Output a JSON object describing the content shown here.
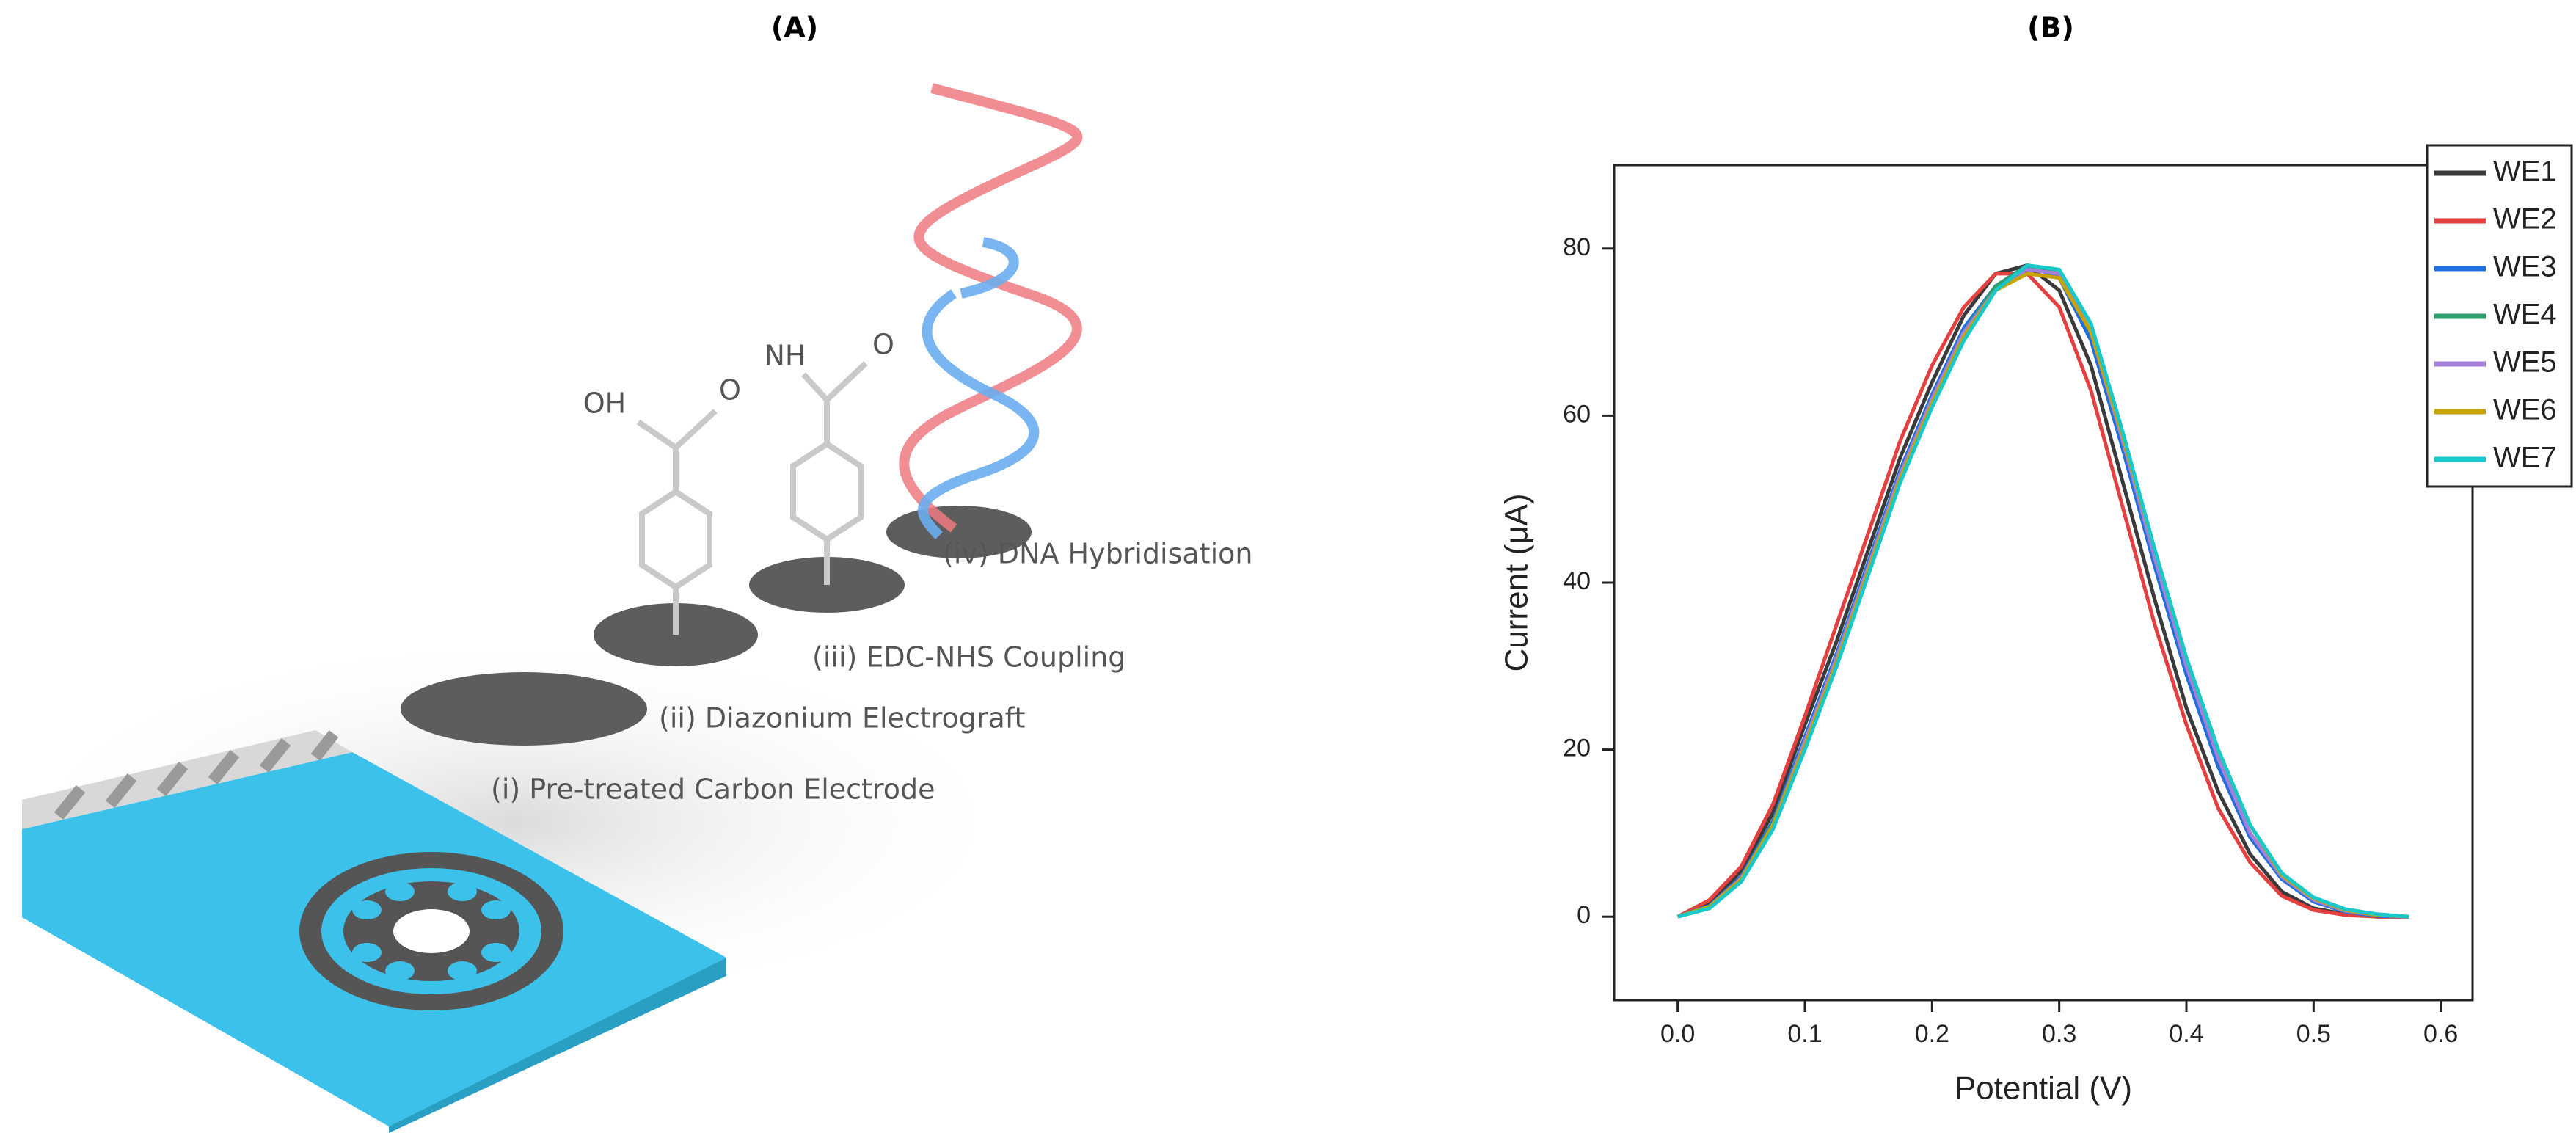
{
  "panel_a": {
    "label": "(A)",
    "steps": [
      "(i) Pre-treated Carbon Electrode",
      "(ii) Diazonium Electrograft",
      "(iii) EDC-NHS Coupling",
      "(iv) DNA Hybridisation"
    ],
    "chemistry": [
      "OH",
      "O",
      "NH",
      "O"
    ]
  },
  "chart_data": {
    "type": "line",
    "title": "(B)",
    "x_label": "Potential (V)",
    "y_label": "Current (μA)",
    "x": [
      0,
      0.025,
      0.05,
      0.075,
      0.1,
      0.125,
      0.15,
      0.175,
      0.2,
      0.225,
      0.25,
      0.275,
      0.3,
      0.325,
      0.35,
      0.375,
      0.4,
      0.425,
      0.45,
      0.475,
      0.5,
      0.525,
      0.55,
      0.575
    ],
    "series": [
      {
        "name": "WE1",
        "color": "#3a3a3a",
        "values": [
          0,
          1.5,
          5.5,
          12.5,
          23,
          33,
          44,
          55,
          64,
          72,
          77,
          78,
          75,
          66,
          52,
          38,
          25,
          15,
          7.5,
          3,
          1,
          0.3,
          0,
          0
        ]
      },
      {
        "name": "WE2",
        "color": "#e4403f",
        "values": [
          0,
          2,
          6,
          13.5,
          24,
          35,
          46,
          57,
          66,
          73,
          77,
          77,
          73,
          63,
          49,
          35,
          23,
          13,
          6.5,
          2.5,
          0.8,
          0.2,
          0,
          0
        ]
      },
      {
        "name": "WE3",
        "color": "#1f6fe0",
        "values": [
          0,
          1.3,
          4.8,
          11.5,
          21.5,
          31.5,
          42.5,
          53.5,
          62.5,
          70.5,
          75.5,
          78,
          76.5,
          69,
          56,
          42,
          29,
          18,
          9.5,
          4.5,
          1.8,
          0.6,
          0.1,
          0
        ]
      },
      {
        "name": "WE4",
        "color": "#2e9e6e",
        "values": [
          0,
          1.2,
          4.6,
          11.2,
          21,
          31,
          42,
          53,
          62,
          70,
          75.5,
          78,
          77,
          70,
          57,
          43,
          30,
          19,
          10,
          4.8,
          2,
          0.7,
          0.2,
          0
        ]
      },
      {
        "name": "WE5",
        "color": "#a57fd9",
        "values": [
          0,
          1.2,
          4.6,
          11,
          21,
          31,
          42,
          53,
          62,
          70,
          75,
          77.5,
          77,
          70,
          57,
          43,
          30,
          19,
          10,
          4.8,
          2,
          0.7,
          0.2,
          0
        ]
      },
      {
        "name": "WE6",
        "color": "#c9a300",
        "values": [
          0,
          1.2,
          4.5,
          11,
          20.5,
          30.5,
          41.5,
          52.5,
          61.5,
          69.5,
          75,
          77,
          76.5,
          70,
          57.5,
          44,
          31,
          20,
          11,
          5,
          2.2,
          0.8,
          0.2,
          0
        ]
      },
      {
        "name": "WE7",
        "color": "#19c8c8",
        "values": [
          0,
          1,
          4.2,
          10.5,
          20,
          30,
          41,
          52,
          61,
          69,
          75,
          78,
          77.5,
          71,
          58,
          44,
          31,
          20,
          11,
          5.2,
          2.3,
          0.9,
          0.3,
          0
        ]
      }
    ],
    "xlim": [
      -0.05,
      0.625
    ],
    "ylim": [
      -10,
      90
    ],
    "xticks": [
      {
        "value": 0,
        "label": "0.0"
      },
      0.1,
      0.2,
      0.3,
      0.4,
      0.5,
      0.6
    ],
    "yticks": [
      0,
      20,
      40,
      60,
      80
    ],
    "legend": "upper right"
  }
}
